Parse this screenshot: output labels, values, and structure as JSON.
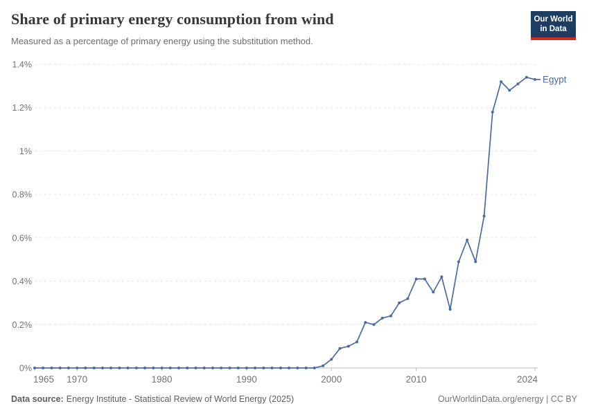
{
  "header": {
    "title": "Share of primary energy consumption from wind",
    "subtitle": "Measured as a percentage of primary energy using the substitution method.",
    "logo": {
      "line1": "Our World",
      "line2": "in Data"
    }
  },
  "footer": {
    "source_label": "Data source:",
    "source_value": "Energy Institute - Statistical Review of World Energy (2025)",
    "credit": "OurWorldinData.org/energy | CC BY"
  },
  "colors": {
    "series": "#4c6aa0",
    "gridline": "#e2e2e2",
    "axis": "#bcbcbc",
    "axis_text": "#737373",
    "logo_bg": "#1d3d63",
    "logo_red": "#d0291d"
  },
  "chart_data": {
    "type": "line",
    "title": "Share of primary energy consumption from wind",
    "subtitle": "Measured as a percentage of primary energy using the substitution method.",
    "unit": "%",
    "grid": "horizontal-dashed",
    "legend_position": "end-of-line-label",
    "xlim": [
      1965,
      2024
    ],
    "ylim": [
      0,
      1.4
    ],
    "x_ticks": [
      1965,
      1970,
      1980,
      1990,
      2000,
      2010,
      2024
    ],
    "y_ticks": [
      {
        "value": 0,
        "label": "0%"
      },
      {
        "value": 0.2,
        "label": "0.2%"
      },
      {
        "value": 0.4,
        "label": "0.4%"
      },
      {
        "value": 0.6,
        "label": "0.6%"
      },
      {
        "value": 0.8,
        "label": "0.8%"
      },
      {
        "value": 1,
        "label": "1%"
      },
      {
        "value": 1.2,
        "label": "1.2%"
      },
      {
        "value": 1.4,
        "label": "1.4%"
      }
    ],
    "series": [
      {
        "name": "Egypt",
        "color": "#4c6aa0",
        "years": [
          1965,
          1966,
          1967,
          1968,
          1969,
          1970,
          1971,
          1972,
          1973,
          1974,
          1975,
          1976,
          1977,
          1978,
          1979,
          1980,
          1981,
          1982,
          1983,
          1984,
          1985,
          1986,
          1987,
          1988,
          1989,
          1990,
          1991,
          1992,
          1993,
          1994,
          1995,
          1996,
          1997,
          1998,
          1999,
          2000,
          2001,
          2002,
          2003,
          2004,
          2005,
          2006,
          2007,
          2008,
          2009,
          2010,
          2011,
          2012,
          2013,
          2014,
          2015,
          2016,
          2017,
          2018,
          2019,
          2020,
          2021,
          2022,
          2023,
          2024
        ],
        "values": [
          0,
          0,
          0,
          0,
          0,
          0,
          0,
          0,
          0,
          0,
          0,
          0,
          0,
          0,
          0,
          0,
          0,
          0,
          0,
          0,
          0,
          0,
          0,
          0,
          0,
          0,
          0,
          0,
          0,
          0,
          0,
          0,
          0,
          0,
          0.01,
          0.04,
          0.09,
          0.1,
          0.12,
          0.21,
          0.2,
          0.23,
          0.24,
          0.3,
          0.32,
          0.41,
          0.41,
          0.35,
          0.42,
          0.27,
          0.49,
          0.59,
          0.49,
          0.7,
          1.18,
          1.32,
          1.28,
          1.31,
          1.34,
          1.33
        ]
      }
    ]
  }
}
